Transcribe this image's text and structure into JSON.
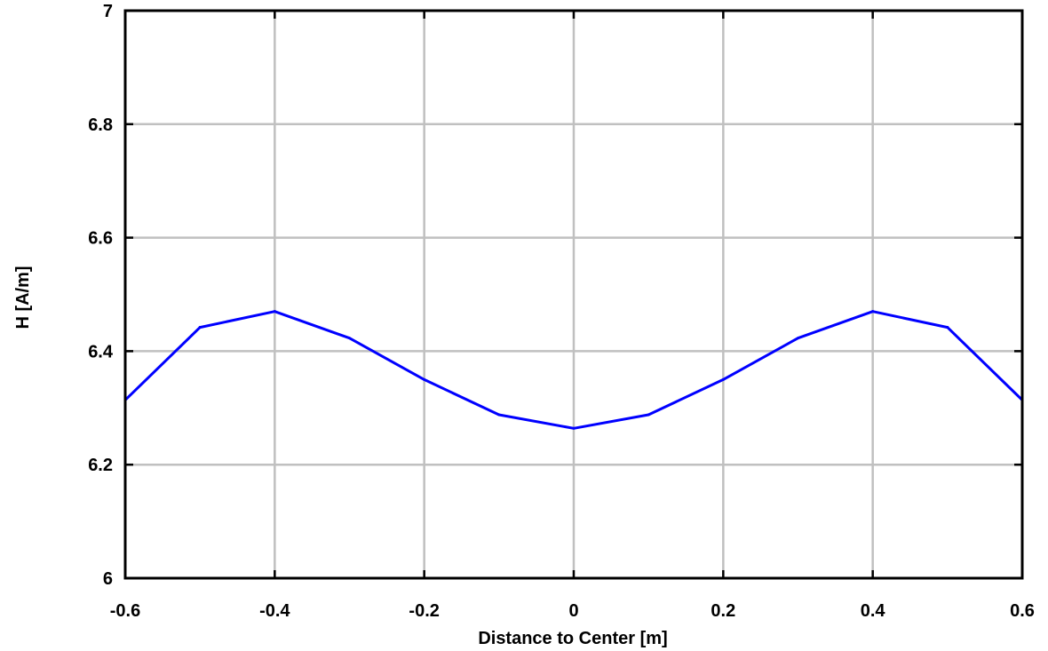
{
  "chart_data": {
    "type": "line",
    "title": "",
    "xlabel": "Distance to Center [m]",
    "ylabel": "H [A/m]",
    "xlim": [
      -0.6,
      0.6
    ],
    "ylim": [
      6,
      7
    ],
    "xticks": [
      -0.6,
      -0.4,
      -0.2,
      0,
      0.2,
      0.4,
      0.6
    ],
    "xtick_labels": [
      "-0.6",
      "-0.4",
      "-0.2",
      "0",
      "0.2",
      "0.4",
      "0.6"
    ],
    "yticks": [
      6,
      6.2,
      6.4,
      6.6,
      6.8,
      7
    ],
    "ytick_labels": [
      "6",
      "6.2",
      "6.4",
      "6.6",
      "6.8",
      "7"
    ],
    "grid": true,
    "legend": "none",
    "series": [
      {
        "color": "#0000ff",
        "x": [
          -0.6,
          -0.5,
          -0.4,
          -0.3,
          -0.2,
          -0.1,
          0,
          0.1,
          0.2,
          0.3,
          0.4,
          0.5,
          0.6
        ],
        "y": [
          6.314,
          6.442,
          6.47,
          6.423,
          6.35,
          6.288,
          6.264,
          6.288,
          6.35,
          6.423,
          6.47,
          6.442,
          6.314
        ]
      }
    ],
    "colors": {
      "grid": "#c0c0c0",
      "axes": "#000000",
      "line": "#0000ff"
    }
  }
}
